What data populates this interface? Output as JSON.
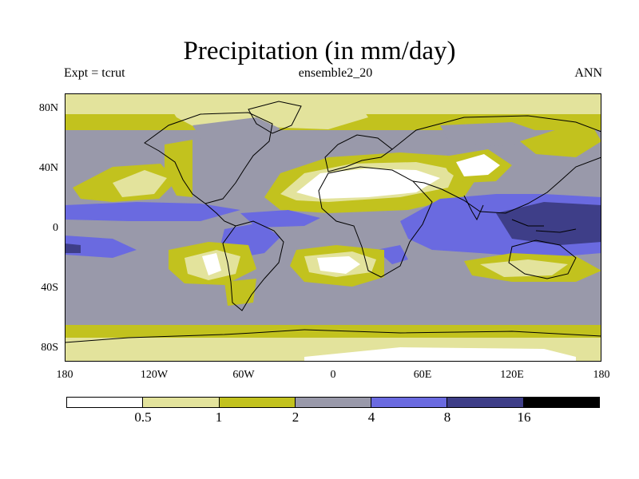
{
  "title": "Precipitation (in mm/day)",
  "subtitle_left": "Expt = tcrut",
  "subtitle_center": "ensemble2_20",
  "subtitle_right": "ANN",
  "map": {
    "projection": "cylindrical-equidistant",
    "lon_range": [
      -180,
      180
    ],
    "lat_range": [
      -90,
      90
    ],
    "y_ticks": [
      {
        "value": 80,
        "label": "80N"
      },
      {
        "value": 40,
        "label": "40N"
      },
      {
        "value": 0,
        "label": "0"
      },
      {
        "value": -40,
        "label": "40S"
      },
      {
        "value": -80,
        "label": "80S"
      }
    ],
    "x_ticks": [
      {
        "value": -180,
        "label": "180"
      },
      {
        "value": -120,
        "label": "120W"
      },
      {
        "value": -60,
        "label": "60W"
      },
      {
        "value": 0,
        "label": "0"
      },
      {
        "value": 60,
        "label": "60E"
      },
      {
        "value": 120,
        "label": "120E"
      },
      {
        "value": 180,
        "label": "180"
      }
    ]
  },
  "legend": {
    "colors": [
      "#ffffff",
      "#e3e39c",
      "#c2c21e",
      "#9999aa",
      "#6a6ae0",
      "#3e3e88",
      "#000000"
    ],
    "labels": [
      "0.5",
      "1",
      "2",
      "4",
      "8",
      "16"
    ]
  },
  "palette": {
    "coast": "#000000"
  }
}
